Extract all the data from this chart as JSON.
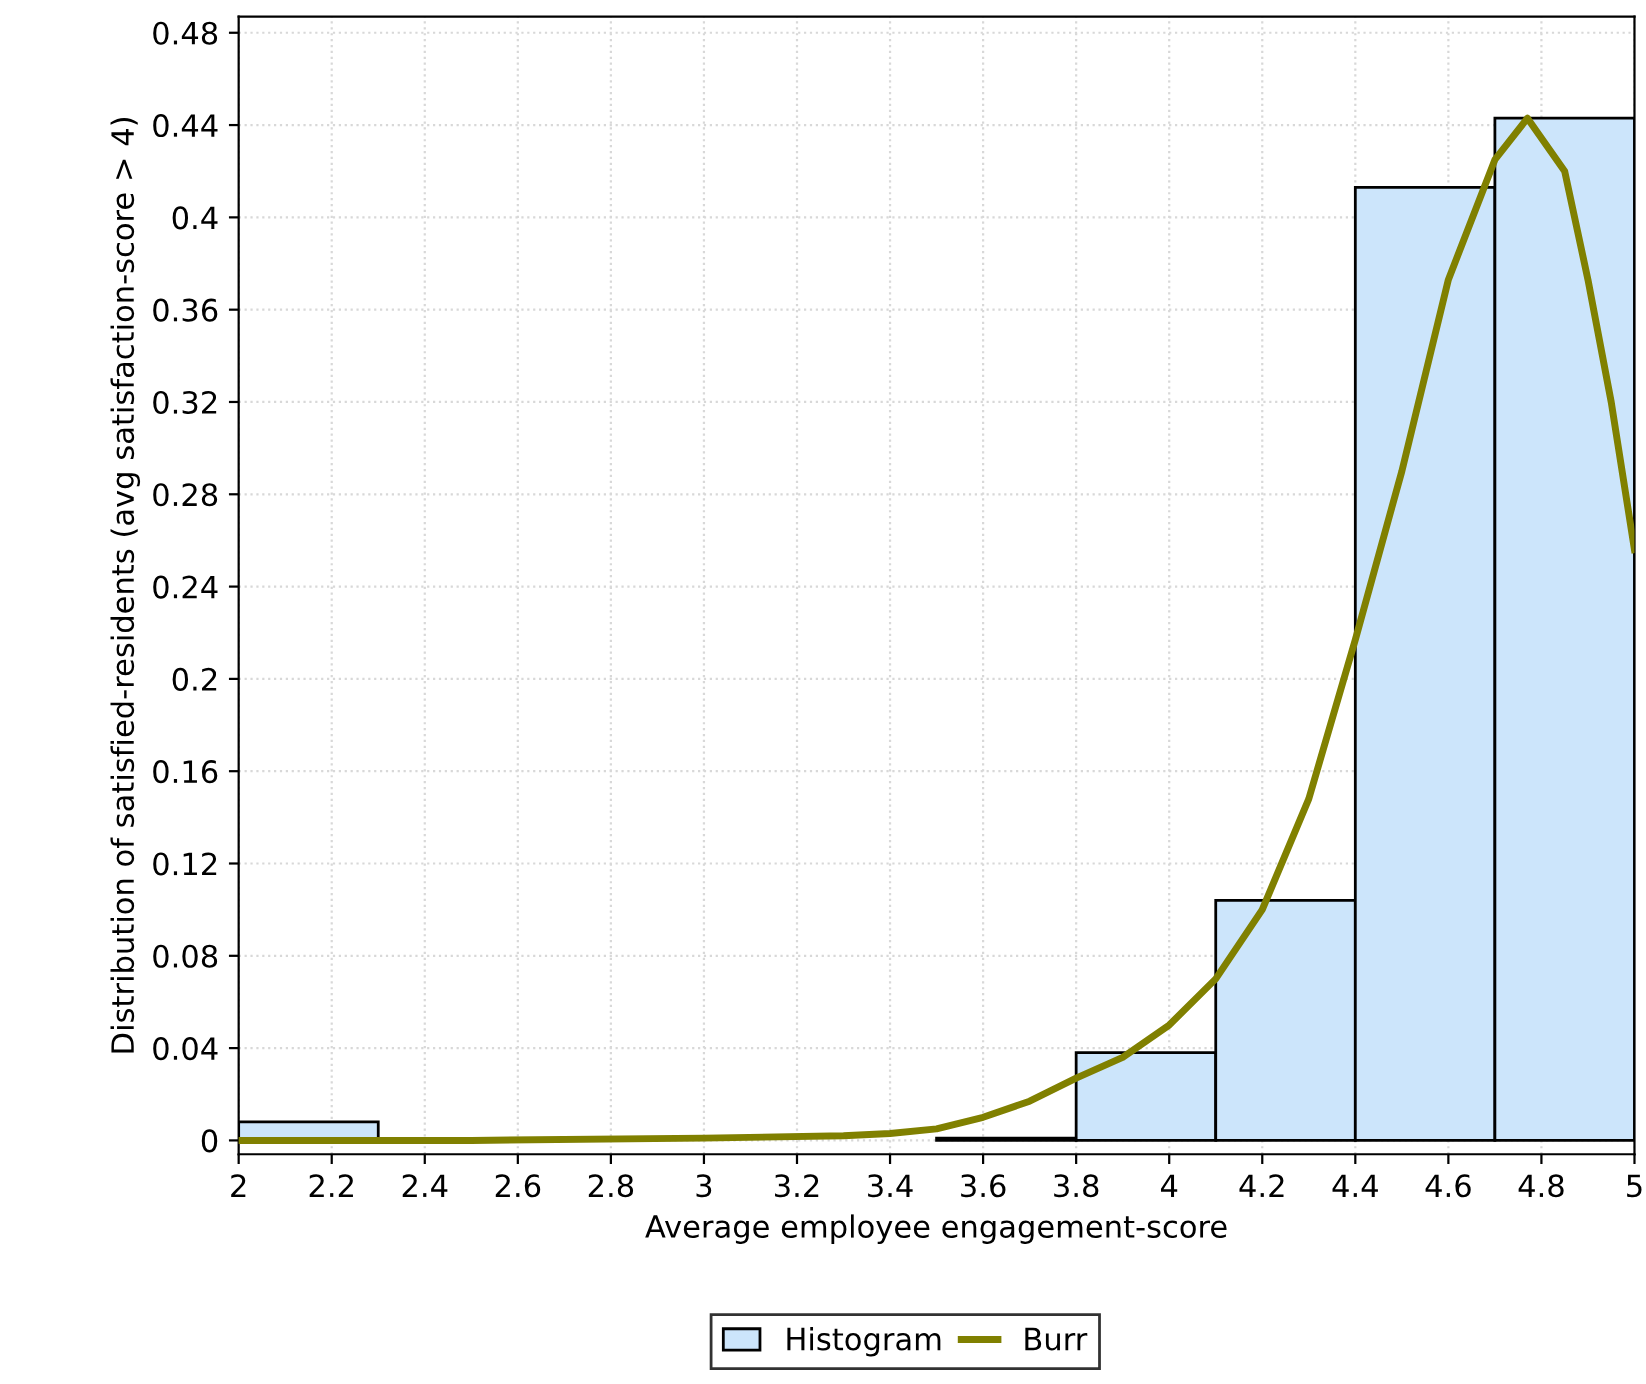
{
  "chart_data": {
    "type": "histogram",
    "xlabel": "Average employee engagement-score",
    "ylabel": "Distribution of satisfied-residents (avg satisfaction-score > 4)",
    "bins": [
      2.0,
      2.3,
      2.6,
      2.9,
      3.2,
      3.5,
      3.8,
      4.1,
      4.4,
      4.7,
      5.0
    ],
    "series": [
      {
        "name": "Histogram",
        "color": "#cce5fb",
        "values": [
          0.008,
          0,
          0,
          0,
          0,
          0.001,
          0.038,
          0.104,
          0.413,
          0.443
        ]
      },
      {
        "name": "Burr",
        "type": "line",
        "color": "#808000",
        "x": [
          2.0,
          2.5,
          3.0,
          3.3,
          3.4,
          3.5,
          3.6,
          3.7,
          3.8,
          3.9,
          4.0,
          4.1,
          4.2,
          4.3,
          4.4,
          4.5,
          4.6,
          4.7,
          4.77,
          4.85,
          4.9,
          4.95,
          5.0
        ],
        "values": [
          0,
          0,
          0.001,
          0.002,
          0.003,
          0.005,
          0.01,
          0.017,
          0.027,
          0.036,
          0.05,
          0.07,
          0.1,
          0.148,
          0.217,
          0.29,
          0.373,
          0.425,
          0.443,
          0.42,
          0.373,
          0.32,
          0.256
        ]
      }
    ],
    "xlim": [
      2,
      5
    ],
    "ylim": [
      -0.006,
      0.487
    ],
    "xticks": [
      2,
      2.2,
      2.4,
      2.6,
      2.8,
      3,
      3.2,
      3.4,
      3.6,
      3.8,
      4,
      4.2,
      4.4,
      4.6,
      4.8,
      5
    ],
    "yticks": [
      0,
      0.04,
      0.08,
      0.12,
      0.16,
      0.2,
      0.24,
      0.28,
      0.32,
      0.36,
      0.4,
      0.44,
      0.48
    ],
    "grid": true,
    "legend": "bottom"
  }
}
